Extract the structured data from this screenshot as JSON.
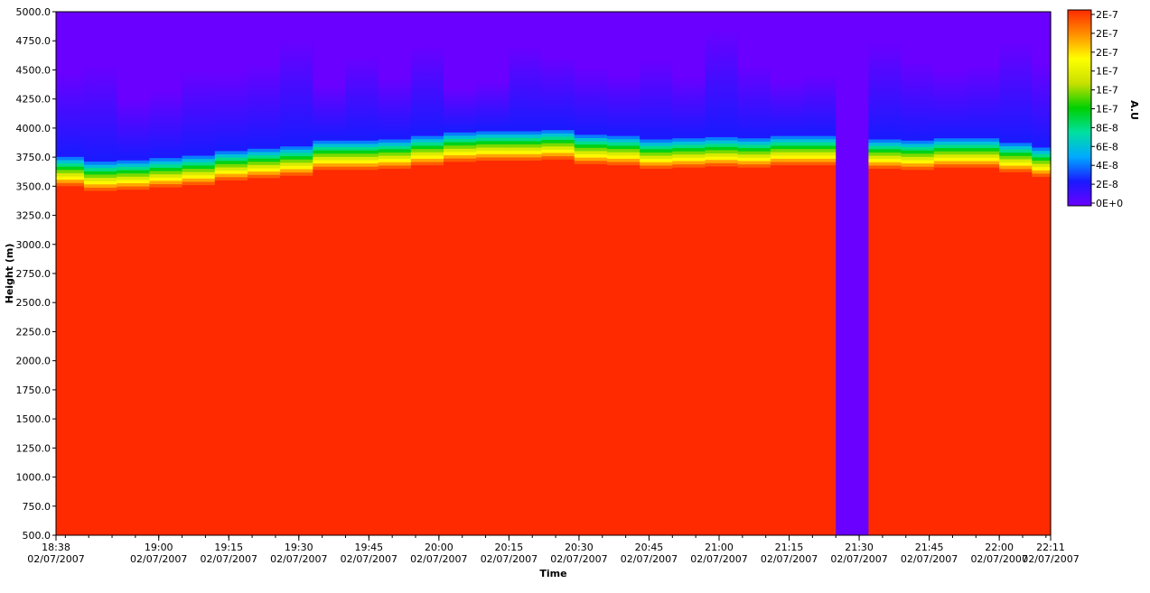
{
  "chart_data": {
    "type": "heatmap",
    "title": "",
    "xlabel": "Time",
    "ylabel": "Height (m)",
    "colorbar_label": "A.U",
    "ylim": [
      500,
      5000
    ],
    "y_ticks": [
      "500.0",
      "750.0",
      "1000.0",
      "1250.0",
      "1500.0",
      "1750.0",
      "2000.0",
      "2250.0",
      "2500.0",
      "2750.0",
      "3000.0",
      "3250.0",
      "3500.0",
      "3750.0",
      "4000.0",
      "4250.0",
      "4500.0",
      "4750.0",
      "5000.0"
    ],
    "x_start": "18:38",
    "x_end": "22:11",
    "x_ticks": [
      {
        "time": "18:38",
        "date": "02/07/2007"
      },
      {
        "time": "19:00",
        "date": "02/07/2007"
      },
      {
        "time": "19:15",
        "date": "02/07/2007"
      },
      {
        "time": "19:30",
        "date": "02/07/2007"
      },
      {
        "time": "19:45",
        "date": "02/07/2007"
      },
      {
        "time": "20:00",
        "date": "02/07/2007"
      },
      {
        "time": "20:15",
        "date": "02/07/2007"
      },
      {
        "time": "20:30",
        "date": "02/07/2007"
      },
      {
        "time": "20:45",
        "date": "02/07/2007"
      },
      {
        "time": "21:00",
        "date": "02/07/2007"
      },
      {
        "time": "21:15",
        "date": "02/07/2007"
      },
      {
        "time": "21:30",
        "date": "02/07/2007"
      },
      {
        "time": "21:45",
        "date": "02/07/2007"
      },
      {
        "time": "22:00",
        "date": "02/07/2007"
      },
      {
        "time": "22:11",
        "date": "02/07/2007"
      }
    ],
    "colorbar_ticks": [
      "2E-7",
      "2E-7",
      "2E-7",
      "1E-7",
      "1E-7",
      "1E-7",
      "8E-8",
      "6E-8",
      "4E-8",
      "2E-8",
      "0E+0"
    ],
    "colorscale": [
      "#6a00ff",
      "#1a1aff",
      "#00aaff",
      "#00e0a0",
      "#00d000",
      "#c8e000",
      "#ffff00",
      "#ff9000",
      "#ff2a00"
    ],
    "profiles": [
      {
        "start": "18:38",
        "end": "18:44",
        "top_height": 3500,
        "blue_depth": 700
      },
      {
        "start": "18:44",
        "end": "18:51",
        "top_height": 3460,
        "blue_depth": 800
      },
      {
        "start": "18:51",
        "end": "18:58",
        "top_height": 3470,
        "blue_depth": 500
      },
      {
        "start": "18:58",
        "end": "19:05",
        "top_height": 3490,
        "blue_depth": 550
      },
      {
        "start": "19:05",
        "end": "19:12",
        "top_height": 3510,
        "blue_depth": 700
      },
      {
        "start": "19:12",
        "end": "19:19",
        "top_height": 3550,
        "blue_depth": 650
      },
      {
        "start": "19:19",
        "end": "19:26",
        "top_height": 3570,
        "blue_depth": 700
      },
      {
        "start": "19:26",
        "end": "19:33",
        "top_height": 3590,
        "blue_depth": 900
      },
      {
        "start": "19:33",
        "end": "19:40",
        "top_height": 3640,
        "blue_depth": 450
      },
      {
        "start": "19:40",
        "end": "19:47",
        "top_height": 3640,
        "blue_depth": 700
      },
      {
        "start": "19:47",
        "end": "19:54",
        "top_height": 3650,
        "blue_depth": 500
      },
      {
        "start": "19:54",
        "end": "20:01",
        "top_height": 3680,
        "blue_depth": 750
      },
      {
        "start": "20:01",
        "end": "20:08",
        "top_height": 3710,
        "blue_depth": 350
      },
      {
        "start": "20:08",
        "end": "20:15",
        "top_height": 3720,
        "blue_depth": 400
      },
      {
        "start": "20:15",
        "end": "20:22",
        "top_height": 3720,
        "blue_depth": 700
      },
      {
        "start": "20:22",
        "end": "20:29",
        "top_height": 3730,
        "blue_depth": 600
      },
      {
        "start": "20:29",
        "end": "20:36",
        "top_height": 3690,
        "blue_depth": 550
      },
      {
        "start": "20:36",
        "end": "20:43",
        "top_height": 3680,
        "blue_depth": 500
      },
      {
        "start": "20:43",
        "end": "20:50",
        "top_height": 3650,
        "blue_depth": 650
      },
      {
        "start": "20:50",
        "end": "20:57",
        "top_height": 3660,
        "blue_depth": 500
      },
      {
        "start": "20:57",
        "end": "21:04",
        "top_height": 3670,
        "blue_depth": 900
      },
      {
        "start": "21:04",
        "end": "21:11",
        "top_height": 3660,
        "blue_depth": 600
      },
      {
        "start": "21:11",
        "end": "21:18",
        "top_height": 3680,
        "blue_depth": 450
      },
      {
        "start": "21:18",
        "end": "21:25",
        "top_height": 3680,
        "blue_depth": 500
      },
      {
        "start": "21:25",
        "end": "21:32",
        "gap": true
      },
      {
        "start": "21:32",
        "end": "21:39",
        "top_height": 3650,
        "blue_depth": 800
      },
      {
        "start": "21:39",
        "end": "21:46",
        "top_height": 3640,
        "blue_depth": 650
      },
      {
        "start": "21:46",
        "end": "21:53",
        "top_height": 3660,
        "blue_depth": 550
      },
      {
        "start": "21:53",
        "end": "22:00",
        "top_height": 3660,
        "blue_depth": 600
      },
      {
        "start": "22:00",
        "end": "22:07",
        "top_height": 3620,
        "blue_depth": 850
      },
      {
        "start": "22:07",
        "end": "22:11",
        "top_height": 3580,
        "blue_depth": 700
      },
      {
        "start": "22:11",
        "end": "22:11",
        "top_height": 3620,
        "blue_depth": 600
      }
    ]
  }
}
